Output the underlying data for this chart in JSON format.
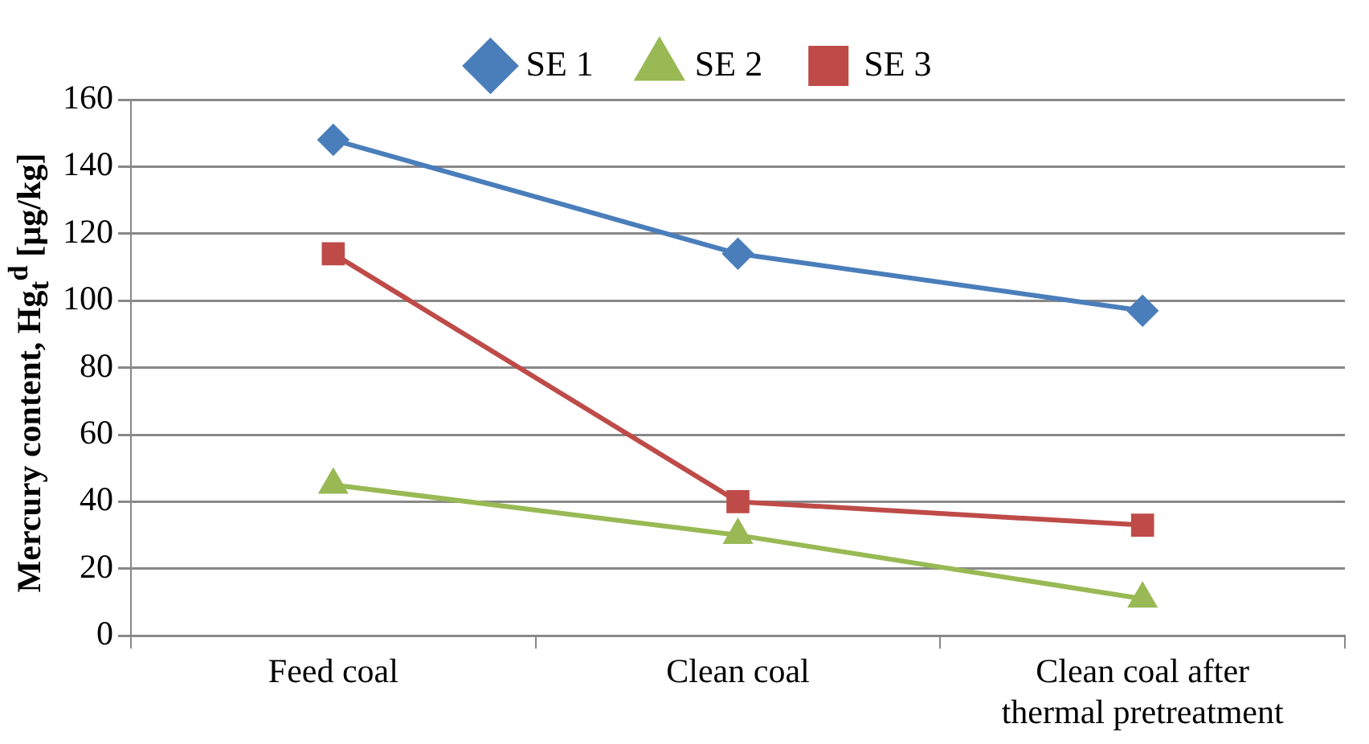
{
  "chart_data": {
    "type": "line",
    "ylabel": "Mercury content, Hg$_{t}$$^{d}$ [µg/kg]",
    "categories": [
      "Feed coal",
      "Clean coal",
      "Clean coal after thermal pretreatment"
    ],
    "series": [
      {
        "name": "SE 1",
        "color": "#4a7ebb",
        "marker": "diamond",
        "values": [
          148,
          114,
          97
        ]
      },
      {
        "name": "SE 2",
        "color": "#98b954",
        "marker": "triangle",
        "values": [
          45,
          30,
          11
        ]
      },
      {
        "name": "SE 3",
        "color": "#be4b48",
        "marker": "square",
        "values": [
          114,
          40,
          33
        ]
      }
    ],
    "ylim": [
      0,
      160
    ],
    "yticks": [
      0,
      20,
      40,
      60,
      80,
      100,
      120,
      140,
      160
    ],
    "grid": "y",
    "legend": "top"
  }
}
